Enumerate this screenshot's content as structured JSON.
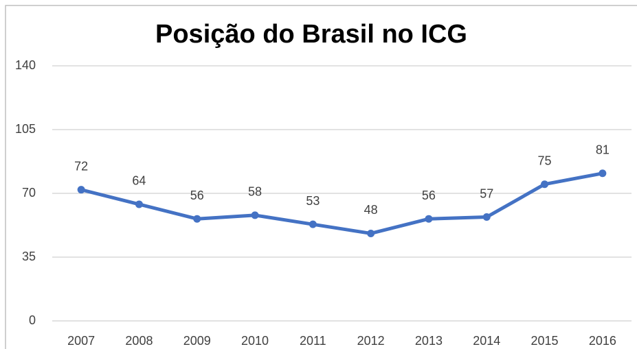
{
  "chart_data": {
    "type": "line",
    "title": "Posição do Brasil no ICG",
    "categories": [
      "2007",
      "2008",
      "2009",
      "2010",
      "2011",
      "2012",
      "2013",
      "2014",
      "2015",
      "2016"
    ],
    "values": [
      72,
      64,
      56,
      58,
      53,
      48,
      56,
      57,
      75,
      81
    ],
    "color": "#4472c4",
    "ylim": [
      0,
      140
    ],
    "yticks": [
      0,
      35,
      70,
      105,
      140
    ],
    "grid": true
  }
}
